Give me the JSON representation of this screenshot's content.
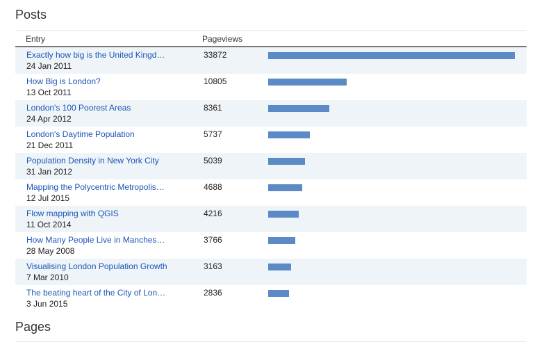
{
  "posts": {
    "title": "Posts",
    "columns": {
      "entry": "Entry",
      "pageviews": "Pageviews"
    },
    "bar_color": "#5b8ac6",
    "rows": [
      {
        "title": "Exactly how big is the United Kingd…",
        "date": "24 Jan 2011",
        "views": 33872
      },
      {
        "title": "How Big is London?",
        "date": "13 Oct 2011",
        "views": 10805
      },
      {
        "title": "London's 100 Poorest Areas",
        "date": "24 Apr 2012",
        "views": 8361
      },
      {
        "title": "London's Daytime Population",
        "date": "21 Dec 2011",
        "views": 5737
      },
      {
        "title": "Population Density in New York City",
        "date": "31 Jan 2012",
        "views": 5039
      },
      {
        "title": "Mapping the Polycentric Metropolis…",
        "date": "12 Jul 2015",
        "views": 4688
      },
      {
        "title": "Flow mapping with QGIS",
        "date": "11 Oct 2014",
        "views": 4216
      },
      {
        "title": "How Many People Live in Manches…",
        "date": "28 May 2008",
        "views": 3766
      },
      {
        "title": "Visualising London Population Growth",
        "date": "7 Mar 2010",
        "views": 3163
      },
      {
        "title": "The beating heart of the City of Lon…",
        "date": "3 Jun 2015",
        "views": 2836
      }
    ]
  },
  "pages": {
    "title": "Pages"
  }
}
